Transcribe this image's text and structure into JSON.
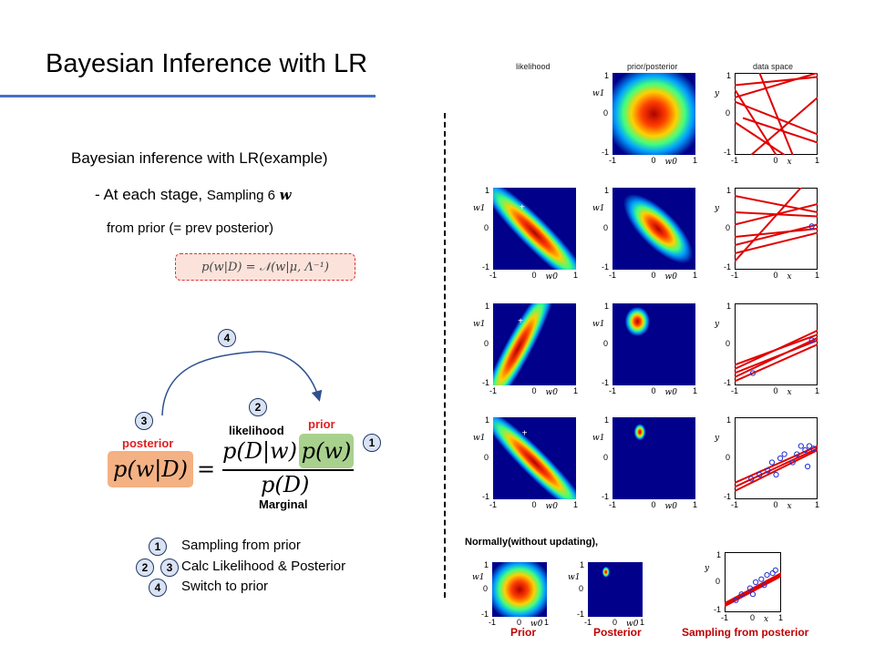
{
  "slide": {
    "title": "Bayesian Inference with LR"
  },
  "left": {
    "heading": "Bayesian inference with LR(example)",
    "stage_prefix": "- At each stage,",
    "stage_suffix": "Sampling 6",
    "stage_symbol": "w",
    "from_prior": "from prior (= prev posterior)",
    "posterior_formula": "p(w|D) = 𝒩(w|μ, Λ⁻¹)",
    "bayes": {
      "posterior_label": "posterior",
      "likelihood_label": "likelihood",
      "prior_label": "prior",
      "marginal_label": "Marginal",
      "lhs": "p(w|D)",
      "equals": "=",
      "likelihood_term": "p(D|w)",
      "prior_term": "p(w)",
      "denominator": "p(D)"
    },
    "steps": [
      {
        "nums": [
          "1"
        ],
        "text": "Sampling from prior"
      },
      {
        "nums": [
          "2",
          "3"
        ],
        "text": "Calc Likelihood & Posterior"
      },
      {
        "nums": [
          "4"
        ],
        "text": "Switch to prior"
      }
    ],
    "markers": {
      "one": "1",
      "two": "2",
      "three": "3",
      "four": "4"
    }
  },
  "right": {
    "col_headers": [
      "likelihood",
      "prior/posterior",
      "data space"
    ],
    "axis": {
      "w0": "w0",
      "w1": "w1",
      "x": "x",
      "y": "y",
      "neg1": "-1",
      "zero": "0",
      "one": "1"
    },
    "normally_label": "Normally(without updating),",
    "bottom_labels": [
      "Prior",
      "Posterior",
      "Sampling from posterior"
    ]
  },
  "colors": {
    "accent_blue": "#4472c4",
    "marker_fill": "#dae3f3",
    "formula_bg": "#fbe3dc",
    "prior_bg": "#a9d18e",
    "posterior_bg": "#f4b183",
    "label_red": "#e02020",
    "heat_bg": "#00008b"
  }
}
